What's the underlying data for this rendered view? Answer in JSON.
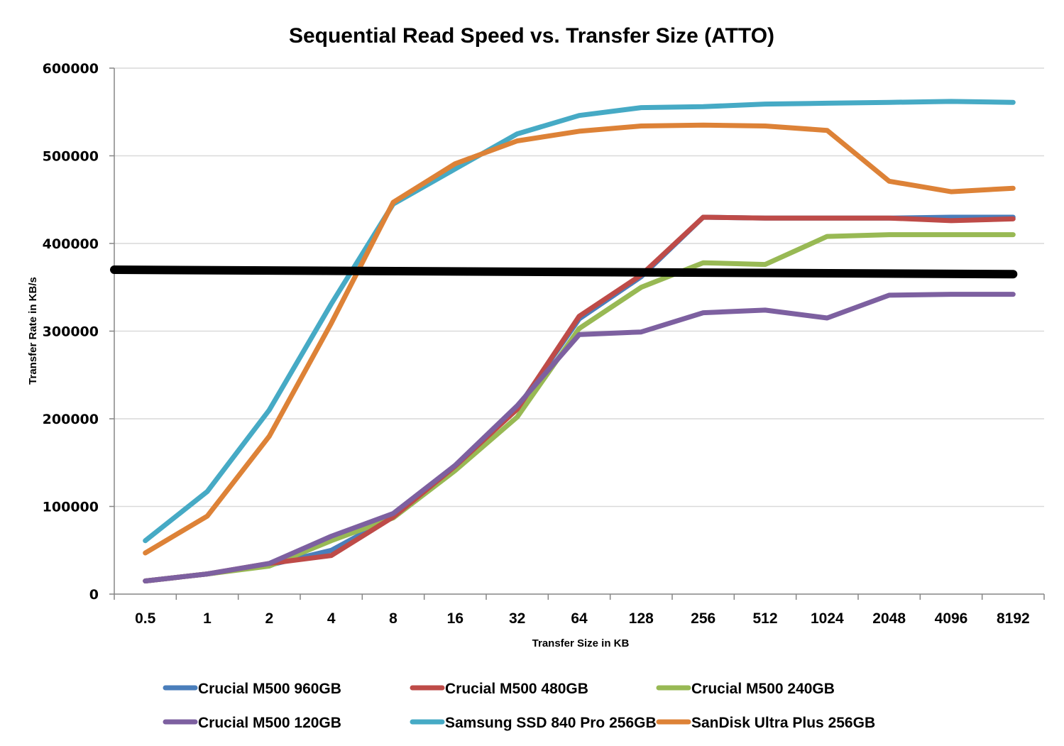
{
  "chart_data": {
    "type": "line",
    "title": "Sequential Read Speed vs. Transfer Size (ATTO)",
    "xlabel": "Transfer Size in KB",
    "ylabel": "Transfer Rate in KB/s",
    "categories": [
      "0.5",
      "1",
      "2",
      "4",
      "8",
      "16",
      "32",
      "64",
      "128",
      "256",
      "512",
      "1024",
      "2048",
      "4096",
      "8192"
    ],
    "ylim": [
      0,
      600000
    ],
    "yticks": [
      0,
      100000,
      200000,
      300000,
      400000,
      500000,
      600000
    ],
    "ytick_labels": [
      "0",
      "100000",
      "200000",
      "300000",
      "400000",
      "500000",
      "600000"
    ],
    "grid": true,
    "legend_position": "bottom",
    "series": [
      {
        "name": "Crucial M500 960GB",
        "color": "#4a7ebb",
        "values": [
          15000,
          23000,
          33000,
          50000,
          88000,
          146000,
          212000,
          314000,
          362000,
          430000,
          429000,
          429000,
          429000,
          430000,
          430000
        ]
      },
      {
        "name": "Crucial M500 480GB",
        "color": "#be4b48",
        "values": [
          15000,
          23000,
          35000,
          44000,
          88000,
          146000,
          211000,
          317000,
          364000,
          430000,
          429000,
          429000,
          429000,
          426000,
          428000
        ]
      },
      {
        "name": "Crucial M500 240GB",
        "color": "#98b954",
        "values": [
          15000,
          23000,
          32000,
          61000,
          87000,
          141000,
          202000,
          303000,
          350000,
          378000,
          376000,
          408000,
          410000,
          410000,
          410000
        ]
      },
      {
        "name": "Crucial M500 120GB",
        "color": "#7d60a0",
        "values": [
          15000,
          23000,
          35000,
          66000,
          92000,
          147000,
          215000,
          296000,
          299000,
          321000,
          324000,
          315000,
          341000,
          342000,
          342000
        ]
      },
      {
        "name": "Samsung SSD 840 Pro 256GB",
        "color": "#46aac5",
        "values": [
          61000,
          117000,
          210000,
          331000,
          445000,
          485000,
          525000,
          546000,
          555000,
          556000,
          559000,
          560000,
          561000,
          562000,
          561000
        ]
      },
      {
        "name": "SanDisk Ultra Plus 256GB",
        "color": "#dd8237",
        "values": [
          47000,
          89000,
          180000,
          309000,
          447000,
          491000,
          517000,
          528000,
          534000,
          535000,
          534000,
          529000,
          471000,
          459000,
          463000
        ]
      }
    ],
    "annotations": [
      {
        "type": "reference-line",
        "color": "#000000",
        "from_value": 370000,
        "to_value": 365000,
        "note": "thick black horizontal marker line spanning the plot"
      }
    ]
  }
}
